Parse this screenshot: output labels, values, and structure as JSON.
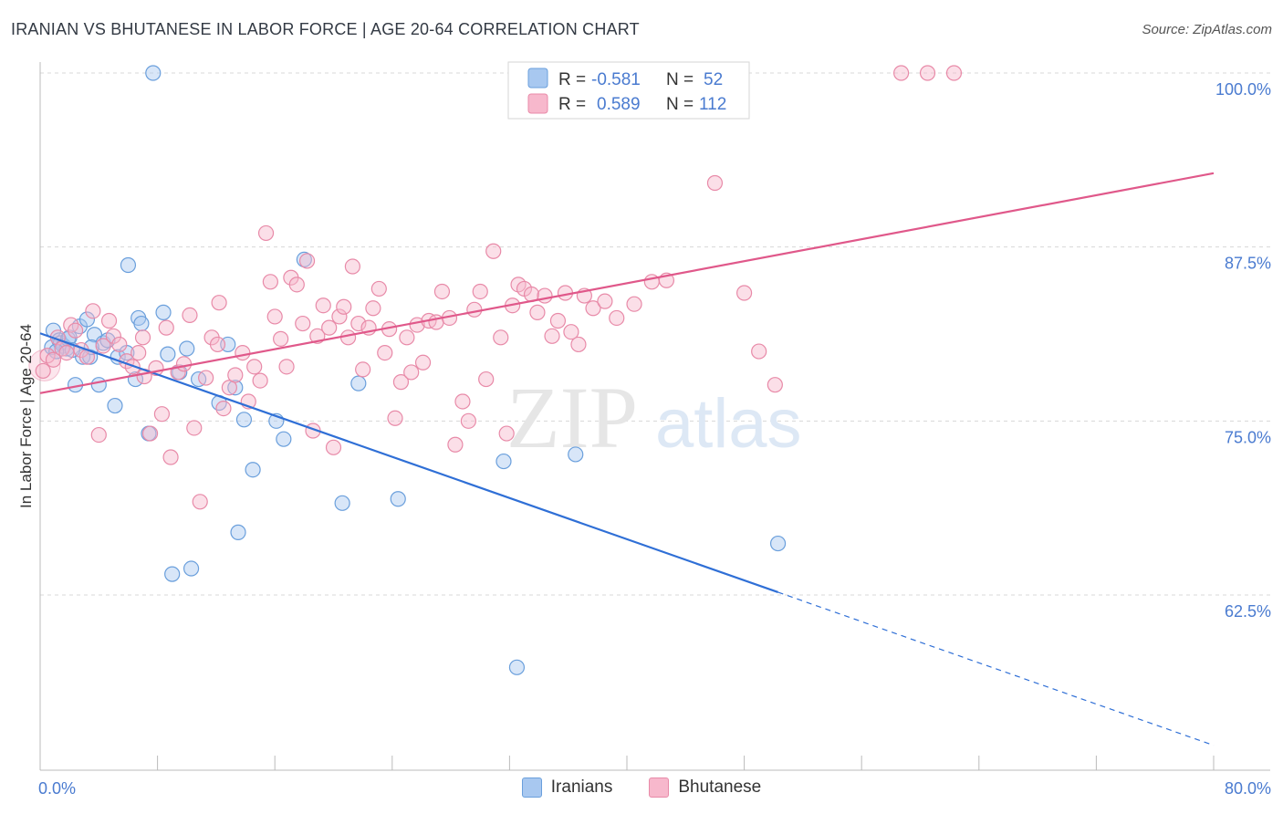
{
  "header": {
    "title": "IRANIAN VS BHUTANESE IN LABOR FORCE | AGE 20-64 CORRELATION CHART",
    "source": "Source: ZipAtlas.com"
  },
  "watermark": {
    "zip": "ZIP",
    "atlas": "atlas"
  },
  "colors": {
    "iranians_fill": "#a8c8f0",
    "iranians_stroke": "#6a9fdc",
    "iranians_line": "#2f6fd6",
    "bhutanese_fill": "#f7b8cc",
    "bhutanese_stroke": "#e88aa8",
    "bhutanese_line": "#e0588a",
    "tick_label": "#4a7bd0",
    "grid": "#d8d8d8"
  },
  "legend_top": {
    "rows": [
      {
        "r_label": "R =",
        "r_value": "-0.581",
        "n_label": "N =",
        "n_value": "52"
      },
      {
        "r_label": "R =",
        "r_value": "0.589",
        "n_label": "N =",
        "n_value": "112"
      }
    ]
  },
  "legend_bottom": [
    "Iranians",
    "Bhutanese"
  ],
  "chart_data": {
    "type": "scatter",
    "title": "IRANIAN VS BHUTANESE IN LABOR FORCE | AGE 20-64 CORRELATION CHART",
    "ylabel": "In Labor Force | Age 20-64",
    "xlabel": "",
    "xlim": [
      0,
      80
    ],
    "ylim": [
      51.5,
      102
    ],
    "x_tick_labels": [
      "0.0%",
      "80.0%"
    ],
    "y_ticks": [
      62.5,
      75.0,
      87.5,
      100.0
    ],
    "y_tick_labels": [
      "62.5%",
      "75.0%",
      "87.5%",
      "100.0%"
    ],
    "grid": "horizontal dashed",
    "legend_placement": "top-center",
    "series": [
      {
        "name": "Iranians",
        "r": -0.581,
        "n": 52,
        "trend": {
          "x0": 0,
          "y0": 81.3,
          "x1": 50.3,
          "y1": 62.7,
          "dash_to_x": 80,
          "dash_to_y": 51.7
        },
        "points": [
          [
            0.8,
            80.3
          ],
          [
            0.9,
            81.5
          ],
          [
            1.3,
            80.8
          ],
          [
            1.4,
            80.6
          ],
          [
            1.6,
            80.4
          ],
          [
            1.8,
            80.2
          ],
          [
            1.9,
            80.9
          ],
          [
            2.0,
            81.0
          ],
          [
            2.4,
            77.6
          ],
          [
            2.7,
            81.8
          ],
          [
            2.9,
            79.6
          ],
          [
            3.2,
            82.3
          ],
          [
            3.4,
            79.6
          ],
          [
            3.7,
            81.2
          ],
          [
            4.0,
            77.6
          ],
          [
            4.3,
            80.6
          ],
          [
            4.6,
            80.8
          ],
          [
            5.1,
            76.1
          ],
          [
            5.3,
            79.6
          ],
          [
            6.0,
            86.2
          ],
          [
            6.5,
            78.0
          ],
          [
            6.7,
            82.4
          ],
          [
            6.9,
            82.0
          ],
          [
            7.4,
            74.1
          ],
          [
            7.7,
            100.0
          ],
          [
            8.4,
            82.8
          ],
          [
            8.7,
            79.8
          ],
          [
            9.0,
            64.0
          ],
          [
            9.5,
            78.5
          ],
          [
            10.0,
            80.2
          ],
          [
            10.3,
            64.4
          ],
          [
            10.8,
            78.0
          ],
          [
            12.2,
            76.3
          ],
          [
            12.8,
            80.5
          ],
          [
            13.3,
            77.4
          ],
          [
            13.5,
            67.0
          ],
          [
            13.9,
            75.1
          ],
          [
            14.5,
            71.5
          ],
          [
            16.1,
            75.0
          ],
          [
            16.6,
            73.7
          ],
          [
            18.0,
            86.6
          ],
          [
            20.6,
            69.1
          ],
          [
            21.7,
            77.7
          ],
          [
            24.4,
            69.4
          ],
          [
            31.6,
            72.1
          ],
          [
            32.5,
            57.3
          ],
          [
            36.5,
            72.6
          ],
          [
            50.3,
            66.2
          ],
          [
            5.9,
            79.9
          ],
          [
            2.2,
            80.1
          ],
          [
            3.5,
            80.3
          ],
          [
            1.1,
            80.0
          ]
        ]
      },
      {
        "name": "Bhutanese",
        "r": 0.589,
        "n": 112,
        "trend": {
          "x0": 0,
          "y0": 77.0,
          "x1": 80,
          "y1": 92.8
        },
        "points": [
          [
            0.2,
            78.6
          ],
          [
            0.5,
            79.7
          ],
          [
            0.9,
            79.4
          ],
          [
            1.2,
            81.0
          ],
          [
            1.5,
            80.2
          ],
          [
            1.8,
            79.9
          ],
          [
            2.1,
            81.9
          ],
          [
            2.4,
            81.5
          ],
          [
            2.8,
            80.1
          ],
          [
            3.2,
            79.6
          ],
          [
            3.6,
            82.9
          ],
          [
            4.0,
            74.0
          ],
          [
            4.3,
            80.4
          ],
          [
            4.7,
            82.2
          ],
          [
            5.0,
            81.1
          ],
          [
            5.4,
            80.5
          ],
          [
            5.9,
            79.3
          ],
          [
            6.3,
            78.9
          ],
          [
            6.7,
            79.9
          ],
          [
            7.1,
            78.2
          ],
          [
            7.5,
            74.1
          ],
          [
            7.9,
            78.8
          ],
          [
            8.3,
            75.5
          ],
          [
            8.6,
            81.7
          ],
          [
            8.9,
            72.4
          ],
          [
            9.4,
            78.5
          ],
          [
            9.8,
            79.1
          ],
          [
            10.2,
            82.6
          ],
          [
            10.5,
            74.5
          ],
          [
            10.9,
            69.2
          ],
          [
            11.3,
            78.1
          ],
          [
            11.7,
            81.0
          ],
          [
            12.1,
            80.5
          ],
          [
            12.5,
            75.9
          ],
          [
            12.9,
            77.4
          ],
          [
            13.3,
            78.3
          ],
          [
            13.8,
            79.9
          ],
          [
            14.2,
            76.4
          ],
          [
            14.6,
            78.9
          ],
          [
            15.0,
            77.9
          ],
          [
            15.4,
            88.5
          ],
          [
            15.7,
            85.0
          ],
          [
            16.0,
            82.5
          ],
          [
            16.4,
            80.9
          ],
          [
            16.8,
            78.9
          ],
          [
            17.1,
            85.3
          ],
          [
            17.5,
            84.8
          ],
          [
            17.9,
            82.0
          ],
          [
            18.2,
            86.5
          ],
          [
            18.6,
            74.3
          ],
          [
            18.9,
            81.1
          ],
          [
            19.3,
            83.3
          ],
          [
            19.7,
            81.7
          ],
          [
            20.0,
            73.1
          ],
          [
            20.4,
            82.5
          ],
          [
            20.7,
            83.2
          ],
          [
            21.0,
            81.0
          ],
          [
            21.3,
            86.1
          ],
          [
            21.7,
            82.0
          ],
          [
            22.0,
            78.7
          ],
          [
            22.4,
            81.7
          ],
          [
            22.7,
            83.1
          ],
          [
            23.1,
            84.5
          ],
          [
            23.5,
            79.9
          ],
          [
            23.8,
            81.6
          ],
          [
            24.2,
            75.2
          ],
          [
            24.6,
            77.8
          ],
          [
            25.0,
            81.0
          ],
          [
            25.3,
            78.5
          ],
          [
            25.7,
            81.9
          ],
          [
            26.1,
            79.2
          ],
          [
            26.5,
            82.2
          ],
          [
            27.0,
            82.1
          ],
          [
            27.4,
            84.3
          ],
          [
            27.9,
            82.4
          ],
          [
            28.3,
            73.3
          ],
          [
            28.8,
            76.4
          ],
          [
            29.2,
            75.0
          ],
          [
            29.6,
            83.0
          ],
          [
            30.0,
            84.3
          ],
          [
            30.4,
            78.0
          ],
          [
            30.9,
            87.2
          ],
          [
            31.4,
            81.0
          ],
          [
            31.8,
            74.1
          ],
          [
            32.2,
            83.3
          ],
          [
            32.6,
            84.8
          ],
          [
            33.0,
            84.5
          ],
          [
            33.5,
            84.1
          ],
          [
            33.9,
            82.8
          ],
          [
            34.4,
            84.0
          ],
          [
            34.9,
            81.1
          ],
          [
            35.3,
            82.2
          ],
          [
            35.8,
            84.2
          ],
          [
            36.2,
            81.4
          ],
          [
            36.7,
            80.5
          ],
          [
            37.1,
            84.0
          ],
          [
            37.7,
            83.1
          ],
          [
            38.5,
            83.6
          ],
          [
            39.3,
            82.4
          ],
          [
            40.5,
            83.4
          ],
          [
            41.7,
            85.0
          ],
          [
            42.7,
            85.1
          ],
          [
            46.0,
            92.1
          ],
          [
            47.5,
            100.0
          ],
          [
            48.0,
            84.2
          ],
          [
            49.0,
            80.0
          ],
          [
            50.1,
            77.6
          ],
          [
            58.7,
            100.0
          ],
          [
            60.5,
            100.0
          ],
          [
            62.3,
            100.0
          ],
          [
            12.2,
            83.5
          ],
          [
            7.0,
            81.0
          ]
        ]
      }
    ]
  }
}
